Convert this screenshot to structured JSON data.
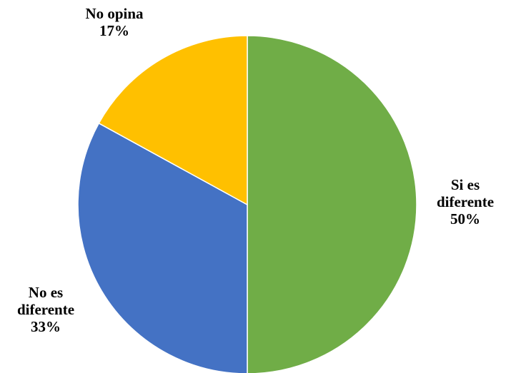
{
  "chart_data": {
    "type": "pie",
    "title": "",
    "slices": [
      {
        "label_lines": [
          "Si es",
          "diferente"
        ],
        "percent_label": "50%",
        "value": 50,
        "color": "#70AD47"
      },
      {
        "label_lines": [
          "No es",
          "diferente"
        ],
        "percent_label": "33%",
        "value": 33,
        "color": "#4472C4"
      },
      {
        "label_lines": [
          "No opina"
        ],
        "percent_label": "17%",
        "value": 17,
        "color": "#FFC000"
      }
    ],
    "start_angle_deg": 0,
    "direction": "clockwise",
    "legend": "none"
  }
}
